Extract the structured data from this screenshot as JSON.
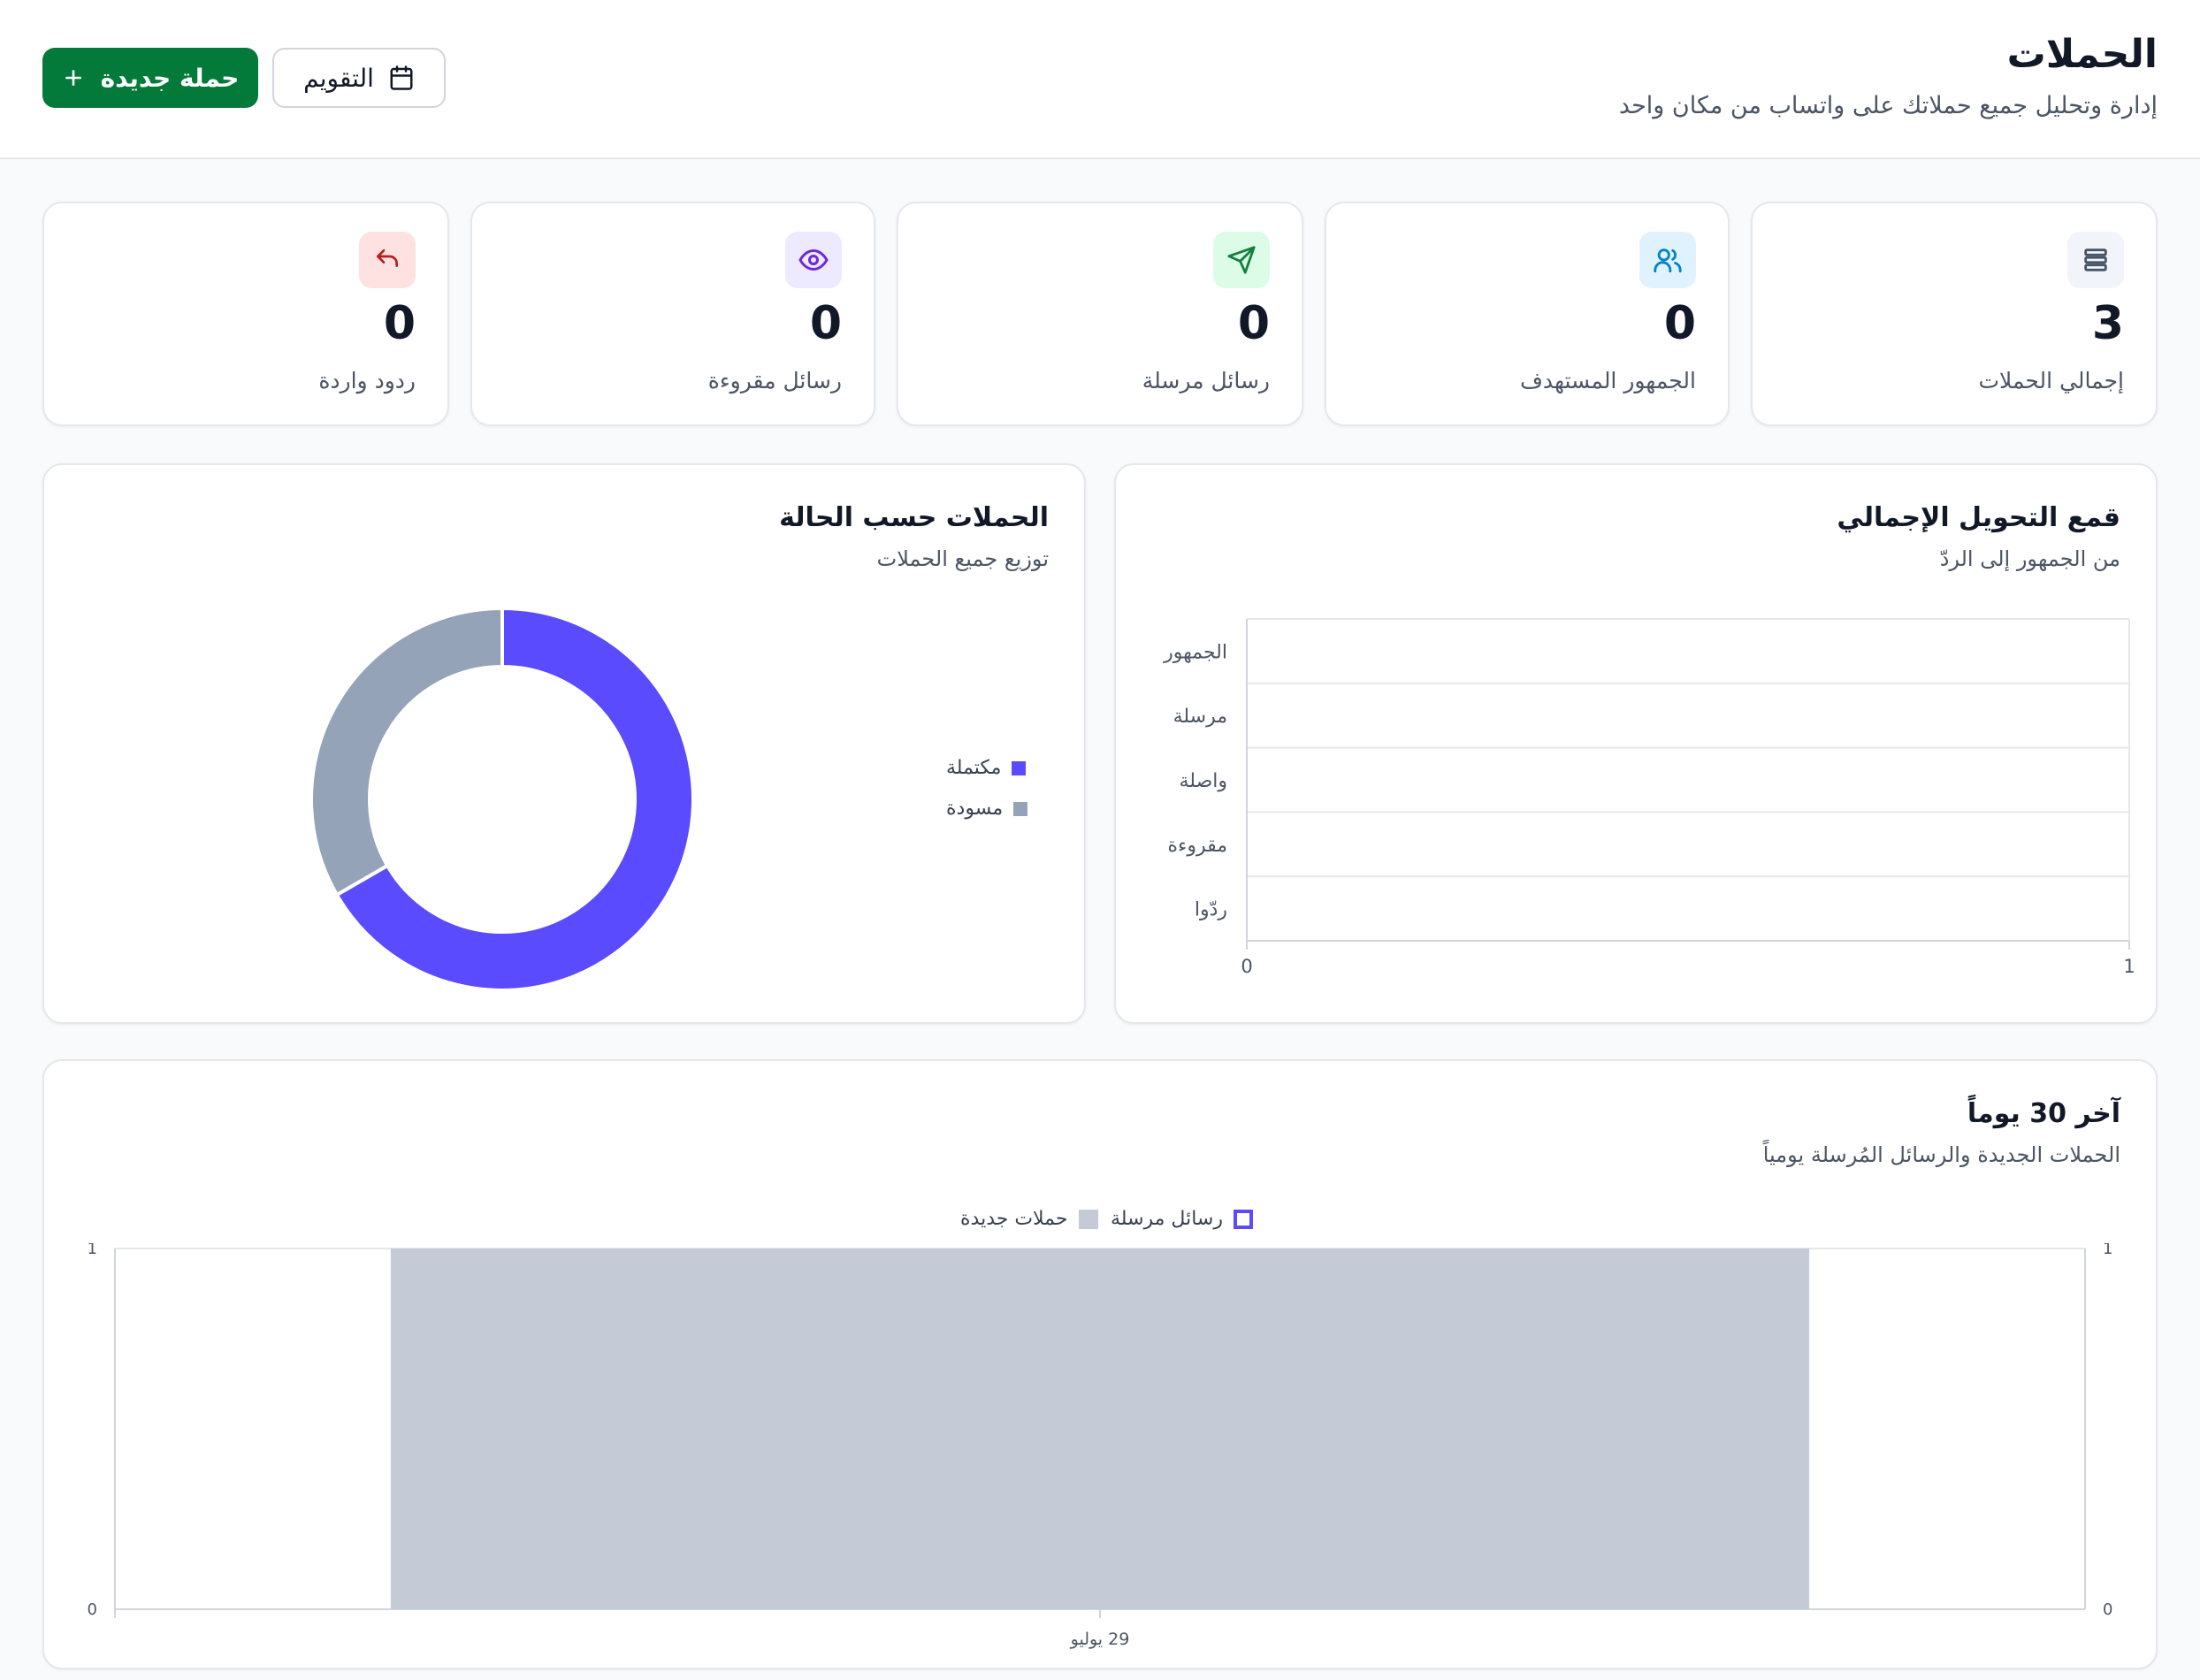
{
  "header": {
    "title": "الحملات",
    "subtitle": "إدارة وتحليل جميع حملاتك على واتساب من مكان واحد",
    "new_campaign_label": "حملة جديدة",
    "calendar_label": "التقويم"
  },
  "stats": [
    {
      "label": "إجمالي الحملات",
      "value": "3",
      "icon": "stack-icon",
      "icon_bg": "#f1f5f9",
      "icon_color": "#475569"
    },
    {
      "label": "الجمهور المستهدف",
      "value": "0",
      "icon": "users-icon",
      "icon_bg": "#e0f2fe",
      "icon_color": "#0284c7"
    },
    {
      "label": "رسائل مرسلة",
      "value": "0",
      "icon": "send-icon",
      "icon_bg": "#dcfce7",
      "icon_color": "#15803d"
    },
    {
      "label": "رسائل مقروءة",
      "value": "0",
      "icon": "eye-icon",
      "icon_bg": "#ede9fe",
      "icon_color": "#6d28d9"
    },
    {
      "label": "ردود واردة",
      "value": "0",
      "icon": "reply-icon",
      "icon_bg": "#fee2e2",
      "icon_color": "#b91c1c"
    }
  ],
  "funnel": {
    "title": "قمع التحويل الإجمالي",
    "subtitle": "من الجمهور إلى الردّ"
  },
  "status": {
    "title": "الحملات حسب الحالة",
    "subtitle": "توزيع جميع الحملات"
  },
  "daily": {
    "title": "آخر 30 يوماً",
    "subtitle": "الحملات الجديدة والرسائل المُرسلة يومياً"
  },
  "colors": {
    "accent_green": "#047a3a",
    "completed": "#5b4bff",
    "draft": "#94a3b8",
    "bar_fill": "#c4cbd6"
  },
  "chart_data": [
    {
      "type": "bar",
      "orientation": "horizontal",
      "categories": [
        "الجمهور",
        "مرسلة",
        "واصلة",
        "مقروءة",
        "ردّوا"
      ],
      "values": [
        0,
        0,
        0,
        0,
        0
      ],
      "xlim": [
        0,
        1
      ],
      "x_ticks": [
        "0",
        "1"
      ],
      "grid": true
    },
    {
      "type": "pie",
      "donut": true,
      "labels": [
        "مكتملة",
        "مسودة"
      ],
      "values": [
        2,
        1
      ],
      "colors": [
        "#5b4bff",
        "#94a3b8"
      ],
      "legend_placement": "left"
    },
    {
      "type": "bar",
      "categories": [
        "29 يوليو"
      ],
      "series": [
        {
          "name": "رسائل مرسلة",
          "values": [
            0
          ],
          "color": "#5b4bff"
        },
        {
          "name": "حملات جديدة",
          "values": [
            1
          ],
          "color": "#c4cbd6"
        }
      ],
      "ylim": [
        0,
        1
      ],
      "y_ticks": [
        "0",
        "1"
      ],
      "y2_ticks": [
        "0",
        "1"
      ],
      "legend_placement": "top"
    }
  ]
}
